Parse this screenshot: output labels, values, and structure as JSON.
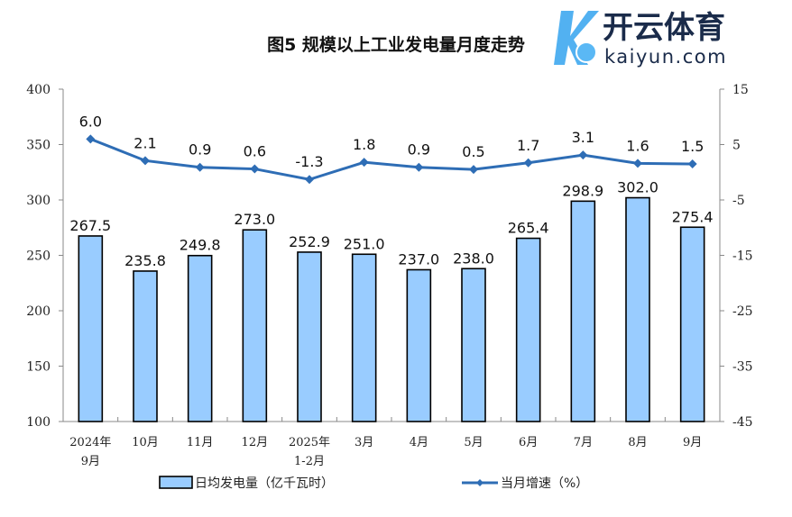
{
  "chart_data": {
    "type": "bar+line",
    "title": "图5  规模以上工业发电量月度走势",
    "categories": [
      "2024年\n9月",
      "10月",
      "11月",
      "12月",
      "2025年\n1-2月",
      "3月",
      "4月",
      "5月",
      "6月",
      "7月",
      "8月",
      "9月"
    ],
    "series": [
      {
        "name": "日均发电量（亿千瓦时）",
        "type": "bar",
        "axis": "left",
        "values": [
          267.5,
          235.8,
          249.8,
          273.0,
          252.9,
          251.0,
          237.0,
          238.0,
          265.4,
          298.9,
          302.0,
          275.4
        ],
        "labels": [
          "267.5",
          "235.8",
          "249.8",
          "273.0",
          "252.9",
          "251.0",
          "237.0",
          "238.0",
          "265.4",
          "298.9",
          "302.0",
          "275.4"
        ]
      },
      {
        "name": "当月增速（%）",
        "type": "line",
        "axis": "right",
        "values": [
          6.0,
          2.1,
          0.9,
          0.6,
          -1.3,
          1.8,
          0.9,
          0.5,
          1.7,
          3.1,
          1.6,
          1.5
        ],
        "labels": [
          "6.0",
          "2.1",
          "0.9",
          "0.6",
          "-1.3",
          "1.8",
          "0.9",
          "0.5",
          "1.7",
          "3.1",
          "1.6",
          "1.5"
        ]
      }
    ],
    "ylim_left": [
      100,
      400
    ],
    "yticks_left": [
      100,
      150,
      200,
      250,
      300,
      350,
      400
    ],
    "ylim_right": [
      -45,
      15
    ],
    "yticks_right": [
      -45,
      -35,
      -25,
      -15,
      -5,
      5,
      15
    ],
    "legend": "bottom",
    "grid": false,
    "colors": {
      "bar": "#99ccff",
      "bar_edge": "#000000",
      "line": "#2e6db5"
    }
  },
  "watermark": {
    "brand": "开云体育",
    "domain": "kaiyun.com"
  }
}
